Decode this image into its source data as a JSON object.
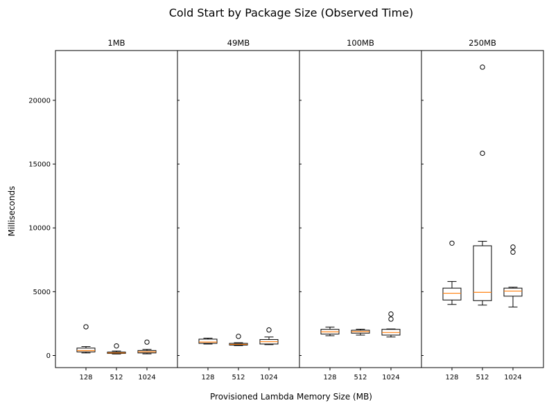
{
  "chart_data": {
    "type": "boxplot",
    "title": "Cold Start by Package Size (Observed Time)",
    "xlabel": "Provisioned Lambda Memory Size (MB)",
    "ylabel": "Milliseconds",
    "ylim": [
      -950,
      23900
    ],
    "yticks": [
      0,
      5000,
      10000,
      15000,
      20000
    ],
    "categories": [
      "128",
      "512",
      "1024"
    ],
    "grid": false,
    "colors": {
      "box": "#000000",
      "median": "#ff7f0e",
      "flier": "#000000"
    },
    "panels": [
      {
        "title": "1MB",
        "boxes": [
          {
            "category": "128",
            "whisker_low": 200,
            "q1": 280,
            "median": 380,
            "q3": 580,
            "whisker_high": 700,
            "fliers": [
              2250
            ]
          },
          {
            "category": "512",
            "whisker_low": 120,
            "q1": 160,
            "median": 200,
            "q3": 270,
            "whisker_high": 350,
            "fliers": [
              750
            ]
          },
          {
            "category": "1024",
            "whisker_low": 130,
            "q1": 200,
            "median": 290,
            "q3": 390,
            "whisker_high": 480,
            "fliers": [
              1050
            ]
          }
        ]
      },
      {
        "title": "49MB",
        "boxes": [
          {
            "category": "128",
            "whisker_low": 900,
            "q1": 950,
            "median": 1050,
            "q3": 1280,
            "whisker_high": 1360,
            "fliers": []
          },
          {
            "category": "512",
            "whisker_low": 780,
            "q1": 820,
            "median": 870,
            "q3": 950,
            "whisker_high": 1000,
            "fliers": [
              1500
            ]
          },
          {
            "category": "1024",
            "whisker_low": 850,
            "q1": 900,
            "median": 1080,
            "q3": 1250,
            "whisker_high": 1450,
            "fliers": [
              2000
            ]
          }
        ]
      },
      {
        "title": "100MB",
        "boxes": [
          {
            "category": "128",
            "whisker_low": 1550,
            "q1": 1680,
            "median": 1850,
            "q3": 2050,
            "whisker_high": 2230,
            "fliers": []
          },
          {
            "category": "512",
            "whisker_low": 1600,
            "q1": 1750,
            "median": 1870,
            "q3": 1980,
            "whisker_high": 2060,
            "fliers": []
          },
          {
            "category": "1024",
            "whisker_low": 1450,
            "q1": 1600,
            "median": 1800,
            "q3": 2050,
            "whisker_high": 2080,
            "fliers": [
              2850,
              3250
            ]
          }
        ]
      },
      {
        "title": "250MB",
        "boxes": [
          {
            "category": "128",
            "whisker_low": 4000,
            "q1": 4350,
            "median": 4880,
            "q3": 5280,
            "whisker_high": 5800,
            "fliers": [
              8800
            ]
          },
          {
            "category": "512",
            "whisker_low": 3950,
            "q1": 4300,
            "median": 4950,
            "q3": 8600,
            "whisker_high": 8950,
            "fliers": [
              15850,
              22600
            ]
          },
          {
            "category": "1024",
            "whisker_low": 3800,
            "q1": 4650,
            "median": 5050,
            "q3": 5280,
            "whisker_high": 5350,
            "fliers": [
              8100,
              8500
            ]
          }
        ]
      }
    ]
  }
}
